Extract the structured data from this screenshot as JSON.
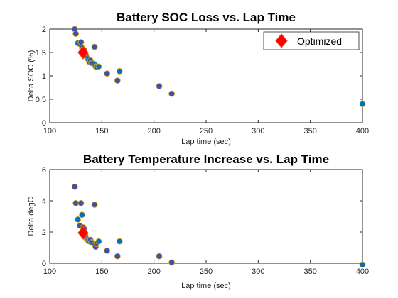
{
  "colors": {
    "marker_fill_a": "#0072BD",
    "marker_fill_b": "#3F51A5",
    "marker_edge": "#D9A520",
    "optimized_fill": "#FF0000",
    "optimized_edge": "#D95319"
  },
  "chart_data": [
    {
      "type": "scatter",
      "title": "Battery SOC Loss vs. Lap Time",
      "xlabel": "Lap time (sec)",
      "ylabel": "Delta SOC (%)",
      "xlim": [
        100,
        400
      ],
      "ylim": [
        0,
        2
      ],
      "xticks": [
        "100",
        "150",
        "200",
        "250",
        "300",
        "350",
        "400"
      ],
      "yticks": [
        "0",
        "0.5",
        "1",
        "1.5",
        "2"
      ],
      "legend": {
        "position": "top-right",
        "entries": [
          "Optimized"
        ]
      },
      "points": [
        {
          "x": 124,
          "y": 2.0
        },
        {
          "x": 125,
          "y": 1.9
        },
        {
          "x": 127,
          "y": 1.7
        },
        {
          "x": 129,
          "y": 1.68
        },
        {
          "x": 130,
          "y": 1.72
        },
        {
          "x": 131,
          "y": 1.6
        },
        {
          "x": 132,
          "y": 1.57
        },
        {
          "x": 133,
          "y": 1.55
        },
        {
          "x": 134,
          "y": 1.47
        },
        {
          "x": 135,
          "y": 1.43
        },
        {
          "x": 136,
          "y": 1.38
        },
        {
          "x": 137,
          "y": 1.35
        },
        {
          "x": 138,
          "y": 1.3
        },
        {
          "x": 139,
          "y": 1.33
        },
        {
          "x": 140,
          "y": 1.28
        },
        {
          "x": 141,
          "y": 1.27
        },
        {
          "x": 143,
          "y": 1.62
        },
        {
          "x": 143,
          "y": 1.25
        },
        {
          "x": 144,
          "y": 1.2
        },
        {
          "x": 145,
          "y": 1.19
        },
        {
          "x": 147,
          "y": 1.2
        },
        {
          "x": 155,
          "y": 1.05
        },
        {
          "x": 165,
          "y": 0.9
        },
        {
          "x": 167,
          "y": 1.1
        },
        {
          "x": 205,
          "y": 0.78
        },
        {
          "x": 217,
          "y": 0.62
        },
        {
          "x": 400,
          "y": 0.4
        }
      ],
      "optimized": {
        "x": 132,
        "y": 1.5
      }
    },
    {
      "type": "scatter",
      "title": "Battery Temperature Increase vs. Lap Time",
      "xlabel": "Lap time (sec)",
      "ylabel": "Delta degC",
      "xlim": [
        100,
        400
      ],
      "ylim": [
        0,
        6
      ],
      "xticks": [
        "100",
        "150",
        "200",
        "250",
        "300",
        "350",
        "400"
      ],
      "yticks": [
        "0",
        "2",
        "4",
        "6"
      ],
      "points": [
        {
          "x": 124,
          "y": 4.9
        },
        {
          "x": 125,
          "y": 3.85
        },
        {
          "x": 127,
          "y": 2.8
        },
        {
          "x": 129,
          "y": 2.4
        },
        {
          "x": 130,
          "y": 3.85
        },
        {
          "x": 131,
          "y": 3.1
        },
        {
          "x": 132,
          "y": 2.3
        },
        {
          "x": 133,
          "y": 2.2
        },
        {
          "x": 134,
          "y": 1.85
        },
        {
          "x": 135,
          "y": 1.6
        },
        {
          "x": 136,
          "y": 1.5
        },
        {
          "x": 137,
          "y": 1.45
        },
        {
          "x": 138,
          "y": 1.4
        },
        {
          "x": 139,
          "y": 1.5
        },
        {
          "x": 140,
          "y": 1.35
        },
        {
          "x": 141,
          "y": 1.3
        },
        {
          "x": 143,
          "y": 3.75
        },
        {
          "x": 143,
          "y": 1.2
        },
        {
          "x": 144,
          "y": 1.05
        },
        {
          "x": 145,
          "y": 1.25
        },
        {
          "x": 147,
          "y": 1.4
        },
        {
          "x": 155,
          "y": 0.8
        },
        {
          "x": 165,
          "y": 0.45
        },
        {
          "x": 167,
          "y": 1.4
        },
        {
          "x": 205,
          "y": 0.45
        },
        {
          "x": 217,
          "y": 0.05
        },
        {
          "x": 400,
          "y": -0.1
        }
      ],
      "optimized": {
        "x": 132,
        "y": 1.95
      }
    }
  ]
}
